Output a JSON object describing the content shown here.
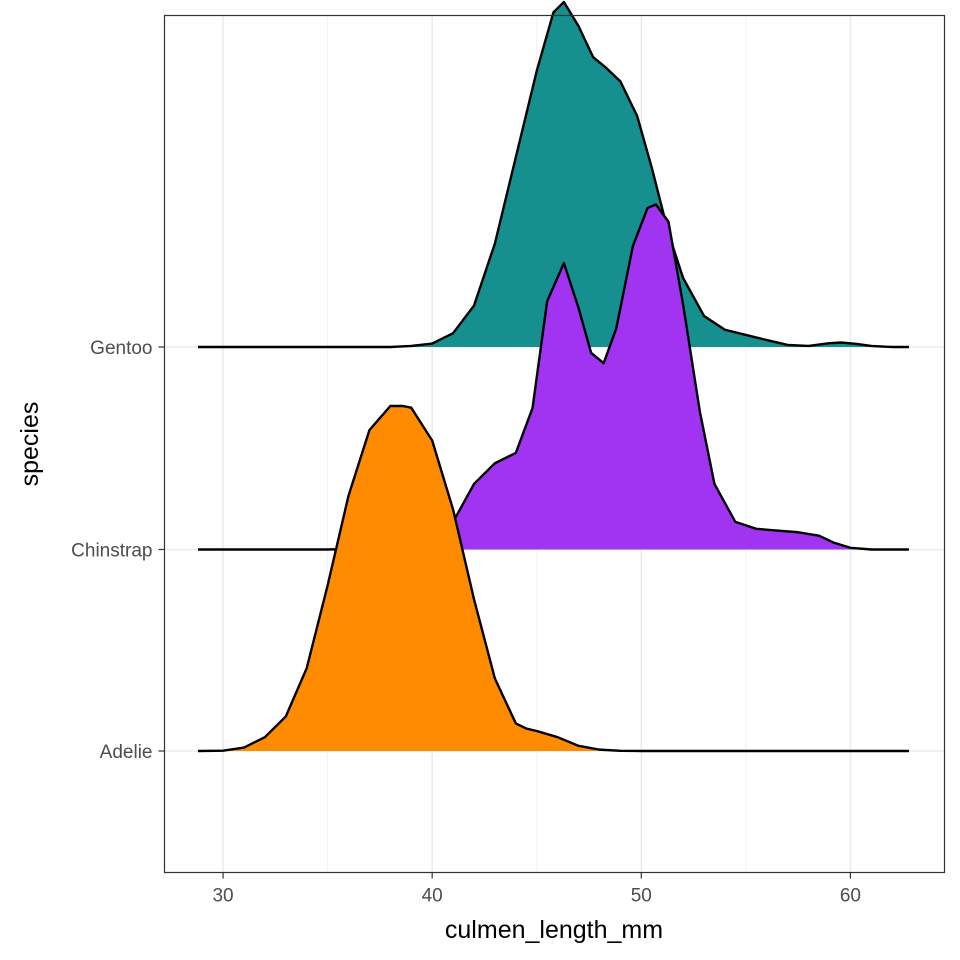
{
  "chart_data": {
    "type": "ridgeline",
    "xlabel": "culmen_length_mm",
    "ylabel": "species",
    "xlim": [
      27.2,
      64.5
    ],
    "x_ticks": [
      30,
      40,
      50,
      60
    ],
    "grid": true,
    "scale": "density (ridge height relative, 1.0 = tallest ridge)",
    "x_range": [
      28.8,
      62.8
    ],
    "series": [
      {
        "name": "Adelie",
        "color": "#FF8C00",
        "points": [
          [
            28.8,
            0.0
          ],
          [
            30,
            0.001
          ],
          [
            31,
            0.01
          ],
          [
            32,
            0.04
          ],
          [
            33,
            0.1
          ],
          [
            34,
            0.24
          ],
          [
            35,
            0.48
          ],
          [
            36,
            0.74
          ],
          [
            37,
            0.93
          ],
          [
            38,
            1.0
          ],
          [
            38.6,
            1.0
          ],
          [
            39,
            0.995
          ],
          [
            40,
            0.9
          ],
          [
            41,
            0.7
          ],
          [
            42,
            0.44
          ],
          [
            43,
            0.21
          ],
          [
            44,
            0.08
          ],
          [
            44.5,
            0.065
          ],
          [
            45,
            0.058
          ],
          [
            46,
            0.04
          ],
          [
            47,
            0.015
          ],
          [
            48,
            0.004
          ],
          [
            49,
            0.0005
          ],
          [
            50,
            0.0
          ],
          [
            62.8,
            0.0
          ]
        ]
      },
      {
        "name": "Chinstrap",
        "color": "#A034F0",
        "points": [
          [
            28.8,
            0.0
          ],
          [
            35,
            0.0
          ],
          [
            38,
            0.005
          ],
          [
            40,
            0.03
          ],
          [
            41,
            0.08
          ],
          [
            42,
            0.19
          ],
          [
            43,
            0.25
          ],
          [
            44,
            0.28
          ],
          [
            44.8,
            0.41
          ],
          [
            45.5,
            0.72
          ],
          [
            46.3,
            0.83
          ],
          [
            47,
            0.7
          ],
          [
            47.6,
            0.57
          ],
          [
            48.2,
            0.54
          ],
          [
            48.8,
            0.64
          ],
          [
            49.6,
            0.88
          ],
          [
            50.3,
            0.99
          ],
          [
            50.7,
            1.0
          ],
          [
            51.3,
            0.95
          ],
          [
            52,
            0.71
          ],
          [
            52.8,
            0.4
          ],
          [
            53.5,
            0.19
          ],
          [
            54.5,
            0.08
          ],
          [
            55.5,
            0.06
          ],
          [
            56.5,
            0.055
          ],
          [
            57.5,
            0.05
          ],
          [
            58.5,
            0.04
          ],
          [
            59.2,
            0.02
          ],
          [
            60,
            0.005
          ],
          [
            61,
            0.0
          ],
          [
            62.8,
            0.0
          ]
        ]
      },
      {
        "name": "Gentoo",
        "color": "#168F8F",
        "points": [
          [
            28.8,
            0.0
          ],
          [
            38,
            0.0
          ],
          [
            39,
            0.003
          ],
          [
            40,
            0.01
          ],
          [
            41,
            0.04
          ],
          [
            42,
            0.12
          ],
          [
            43,
            0.3
          ],
          [
            44,
            0.55
          ],
          [
            45,
            0.8
          ],
          [
            45.8,
            0.97
          ],
          [
            46.3,
            1.0
          ],
          [
            47,
            0.93
          ],
          [
            47.7,
            0.84
          ],
          [
            48.3,
            0.81
          ],
          [
            49,
            0.77
          ],
          [
            49.8,
            0.67
          ],
          [
            50.5,
            0.52
          ],
          [
            51.3,
            0.33
          ],
          [
            52,
            0.2
          ],
          [
            53,
            0.09
          ],
          [
            54,
            0.05
          ],
          [
            55,
            0.035
          ],
          [
            56,
            0.02
          ],
          [
            57,
            0.006
          ],
          [
            58,
            0.003
          ],
          [
            59,
            0.011
          ],
          [
            59.6,
            0.013
          ],
          [
            60.3,
            0.009
          ],
          [
            61,
            0.003
          ],
          [
            62,
            0.0
          ],
          [
            62.8,
            0.0
          ]
        ]
      }
    ]
  }
}
